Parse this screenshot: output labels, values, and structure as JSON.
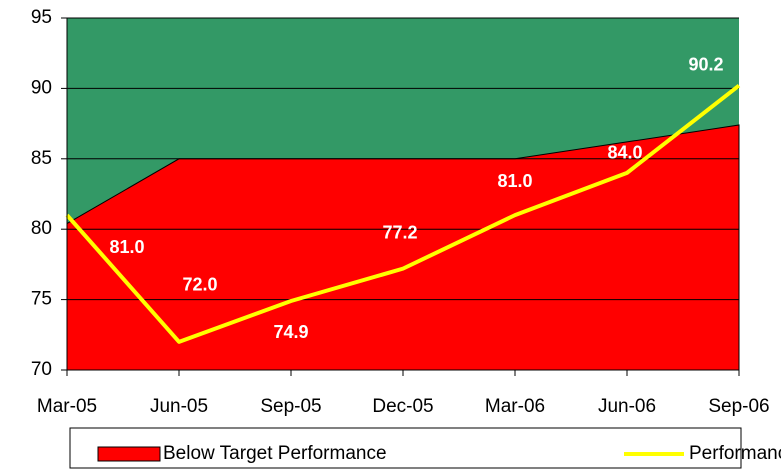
{
  "chart_data": {
    "type": "combo",
    "categories": [
      "Mar-05",
      "Jun-05",
      "Sep-05",
      "Dec-05",
      "Mar-06",
      "Jun-06",
      "Sep-06"
    ],
    "series": [
      {
        "name": "Below Target Performance",
        "type": "area",
        "color": "#ff0000",
        "values": [
          80.4,
          85,
          85,
          85,
          85,
          86.2,
          87.4
        ]
      },
      {
        "name": "Performance",
        "type": "line",
        "color": "#ffff00",
        "values": [
          81.0,
          72.0,
          74.9,
          77.2,
          81.0,
          84.0,
          90.2
        ],
        "value_labels": [
          "81.0",
          "72.0",
          "74.9",
          "77.2",
          "81.0",
          "84.0",
          "90.2"
        ]
      }
    ],
    "background": "#339966",
    "ylim": [
      70,
      95
    ],
    "yticks": [
      70,
      75,
      80,
      85,
      90,
      95
    ],
    "grid": true,
    "legend": "bottom"
  }
}
